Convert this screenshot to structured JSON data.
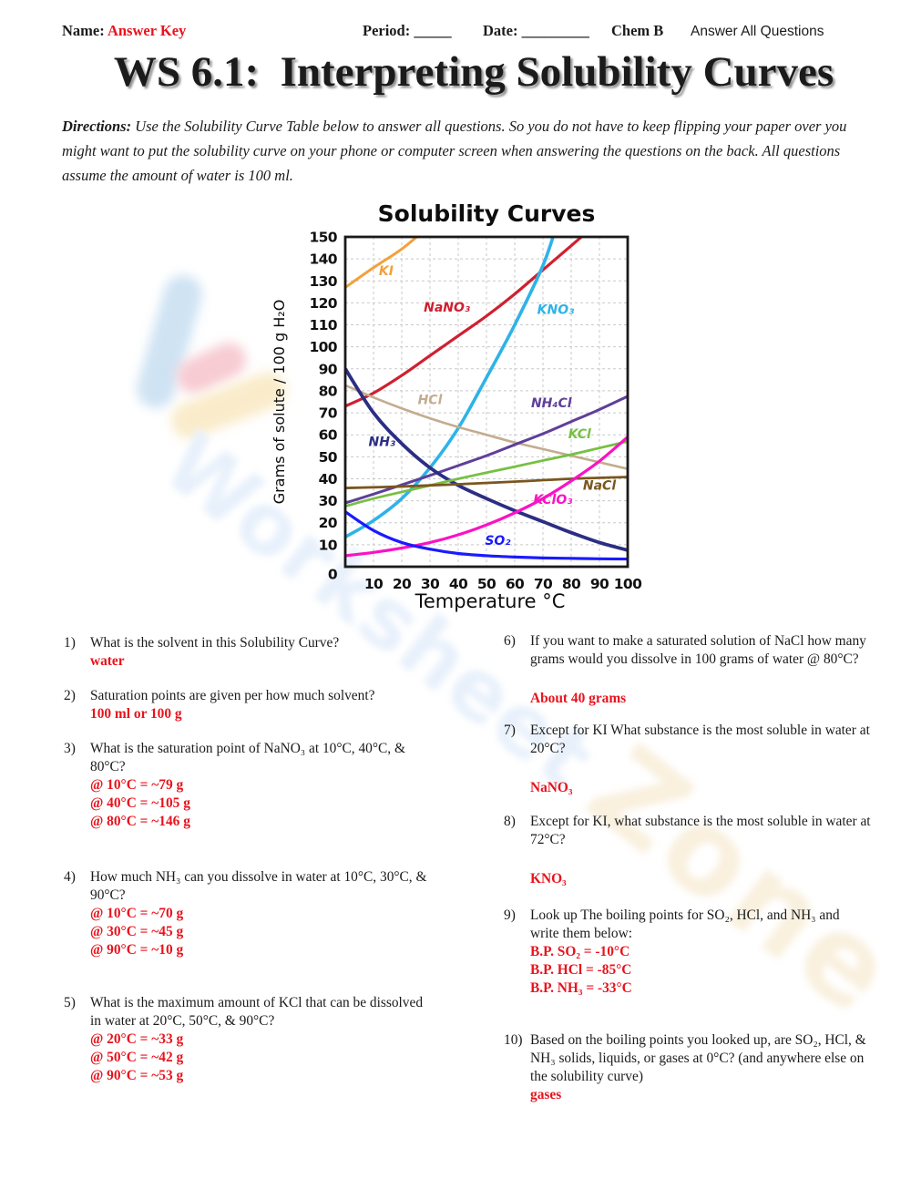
{
  "header": {
    "name_label": "Name: ",
    "name_value": "Answer Key",
    "period_label": "Period: _____",
    "date_label": "Date: _________",
    "chem_label": "Chem B",
    "note": "Answer All Questions"
  },
  "title": "WS 6.1:  Interpreting Solubility Curves",
  "directions_label": "Directions:",
  "directions_text": "  Use the Solubility Curve Table below to answer all questions.  So you do not have to keep flipping your paper over you might want to put the solubility curve on your phone or computer screen when answering the questions on the back.  All questions assume the amount of water is 100 ml.",
  "watermark": {
    "text_primary": "Worksheet",
    "text_secondary": "Zone",
    "blue": "#e7f0fb",
    "tan": "#f9f0de"
  },
  "chart_data": {
    "type": "line",
    "title": "Solubility Curves",
    "xlabel": "Temperature °C",
    "ylabel": "Grams of solute / 100 g H₂O",
    "xlim": [
      0,
      100
    ],
    "ylim": [
      0,
      150
    ],
    "xticks": [
      10,
      20,
      30,
      40,
      50,
      60,
      70,
      80,
      90,
      100
    ],
    "yticks": [
      0,
      10,
      20,
      30,
      40,
      50,
      60,
      70,
      80,
      90,
      100,
      110,
      120,
      130,
      140,
      150
    ],
    "grid": "dashed",
    "series": [
      {
        "name": "KI",
        "color": "#f2a13c",
        "width": 3,
        "points": [
          [
            0,
            127
          ],
          [
            10,
            136
          ],
          [
            20,
            144.5
          ],
          [
            28,
            153
          ]
        ]
      },
      {
        "name": "NaNO3",
        "color": "#cf2030",
        "width": 3.2,
        "points": [
          [
            0,
            73
          ],
          [
            10,
            79
          ],
          [
            20,
            87
          ],
          [
            30,
            96
          ],
          [
            40,
            105
          ],
          [
            50,
            114
          ],
          [
            60,
            124
          ],
          [
            70,
            135
          ],
          [
            80,
            146
          ],
          [
            90,
            157
          ]
        ]
      },
      {
        "name": "KNO3",
        "color": "#2eb3e8",
        "width": 3.6,
        "points": [
          [
            0,
            13.5
          ],
          [
            10,
            21
          ],
          [
            20,
            31
          ],
          [
            30,
            45
          ],
          [
            40,
            63
          ],
          [
            50,
            86
          ],
          [
            60,
            110
          ],
          [
            70,
            137
          ],
          [
            75,
            156
          ]
        ]
      },
      {
        "name": "HCl",
        "color": "#c3ac8e",
        "width": 2.6,
        "points": [
          [
            0,
            82.5
          ],
          [
            10,
            77
          ],
          [
            20,
            72
          ],
          [
            30,
            67.5
          ],
          [
            40,
            63.5
          ],
          [
            50,
            60
          ],
          [
            60,
            56.5
          ],
          [
            70,
            53.5
          ],
          [
            80,
            50.5
          ],
          [
            90,
            47.5
          ],
          [
            100,
            44.5
          ]
        ]
      },
      {
        "name": "NH4Cl",
        "color": "#5f3f99",
        "width": 3,
        "points": [
          [
            0,
            29
          ],
          [
            10,
            33
          ],
          [
            20,
            37.2
          ],
          [
            30,
            41.5
          ],
          [
            40,
            46
          ],
          [
            50,
            50.5
          ],
          [
            60,
            55.5
          ],
          [
            70,
            60.5
          ],
          [
            80,
            66
          ],
          [
            90,
            71.5
          ],
          [
            100,
            77.5
          ]
        ]
      },
      {
        "name": "NH3",
        "color": "#2b2e83",
        "width": 3.8,
        "points": [
          [
            0,
            90
          ],
          [
            10,
            70
          ],
          [
            20,
            56
          ],
          [
            30,
            45
          ],
          [
            40,
            37
          ],
          [
            50,
            31
          ],
          [
            60,
            25.5
          ],
          [
            70,
            20.5
          ],
          [
            80,
            15.5
          ],
          [
            90,
            11
          ],
          [
            100,
            7.5
          ]
        ]
      },
      {
        "name": "KCl",
        "color": "#76c043",
        "width": 2.8,
        "points": [
          [
            0,
            27.5
          ],
          [
            10,
            31
          ],
          [
            20,
            34
          ],
          [
            30,
            37
          ],
          [
            40,
            40
          ],
          [
            50,
            42.8
          ],
          [
            60,
            45.5
          ],
          [
            70,
            48.3
          ],
          [
            80,
            51
          ],
          [
            90,
            54
          ],
          [
            100,
            57
          ]
        ]
      },
      {
        "name": "NaCl",
        "color": "#7a561e",
        "width": 2.8,
        "points": [
          [
            0,
            35.8
          ],
          [
            20,
            36.5
          ],
          [
            40,
            37.5
          ],
          [
            60,
            38.7
          ],
          [
            80,
            40
          ],
          [
            100,
            40.8
          ]
        ]
      },
      {
        "name": "KClO3",
        "color": "#fb12c4",
        "width": 3.2,
        "points": [
          [
            0,
            5
          ],
          [
            10,
            6.5
          ],
          [
            20,
            8.5
          ],
          [
            30,
            11
          ],
          [
            40,
            14.5
          ],
          [
            50,
            19
          ],
          [
            60,
            24.5
          ],
          [
            70,
            31
          ],
          [
            80,
            39
          ],
          [
            90,
            48
          ],
          [
            100,
            59
          ]
        ]
      },
      {
        "name": "SO2",
        "color": "#1a1aff",
        "width": 3.2,
        "points": [
          [
            0,
            25
          ],
          [
            10,
            16.5
          ],
          [
            20,
            11
          ],
          [
            30,
            8
          ],
          [
            40,
            6
          ],
          [
            50,
            5
          ],
          [
            60,
            4.4
          ],
          [
            70,
            4
          ],
          [
            80,
            3.8
          ],
          [
            90,
            3.6
          ],
          [
            100,
            3.5
          ]
        ]
      }
    ],
    "labels": [
      {
        "text": "KI",
        "x": 14.5,
        "y": 132.5,
        "color": "#f2a13c"
      },
      {
        "text": "NaNO₃",
        "x": 36,
        "y": 116,
        "color": "#cf2030"
      },
      {
        "text": "KNO₃",
        "x": 74.5,
        "y": 115,
        "color": "#2eb3e8"
      },
      {
        "text": "HCl",
        "x": 30,
        "y": 74,
        "color": "#c3ac8e"
      },
      {
        "text": "NH₄Cl",
        "x": 73,
        "y": 72.5,
        "color": "#5f3f99"
      },
      {
        "text": "NH₃",
        "x": 13,
        "y": 55,
        "color": "#2b2e83"
      },
      {
        "text": "KCl",
        "x": 83,
        "y": 58.5,
        "color": "#76c043"
      },
      {
        "text": "NaCl",
        "x": 90,
        "y": 35,
        "color": "#7a561e"
      },
      {
        "text": "KClO₃",
        "x": 73.5,
        "y": 28.5,
        "color": "#fb12c4"
      },
      {
        "text": "SO₂",
        "x": 54,
        "y": 10,
        "color": "#1a1aff"
      }
    ]
  },
  "questions_left": [
    {
      "num": "1)",
      "text": "What is the solvent in this Solubility Curve?",
      "answer": "water"
    },
    {
      "num": "2)",
      "text": "Saturation points are given per how much solvent?",
      "answer": "100 ml or 100 g"
    },
    {
      "num": "3)",
      "text": "What is the saturation point of NaNO₃ at 10°C, 40°C, &\n80°C?",
      "answer": "@ 10°C = ~79 g\n@ 40°C = ~105 g\n@ 80°C = ~146 g"
    },
    {
      "num": "4)",
      "text": "How much NH₃ can you dissolve in water at 10°C, 30°C, &\n90°C?",
      "answer": "@ 10°C = ~70 g\n@ 30°C = ~45 g\n@ 90°C = ~10 g"
    },
    {
      "num": "5)",
      "text": "What is the maximum amount of KCl that can be dissolved\nin water at 20°C, 50°C, & 90°C?",
      "answer": "@ 20°C =  ~33 g\n@ 50°C = ~42 g\n@ 90°C = ~53 g"
    }
  ],
  "questions_right": [
    {
      "num": "6)",
      "text": "If you want to make a saturated solution of NaCl how many\ngrams would you dissolve in 100 grams of water @ 80°C?",
      "answer": "About 40 grams"
    },
    {
      "num": "7)",
      "text": "Except for KI What substance is the most soluble in water at\n20°C?",
      "answer": "NaNO₃"
    },
    {
      "num": "8)",
      "text": "Except for KI, what substance is the most soluble in water at\n72°C?",
      "answer": "KNO₃"
    },
    {
      "num": "9)",
      "text": "Look up The boiling points for SO₂, HCl, and NH₃ and\nwrite them below:",
      "answer": "B.P. SO₂ =  -10°C\nB.P. HCl = -85°C\nB.P. NH₃ = -33°C"
    },
    {
      "num": "10)",
      "text": "Based on the boiling points you looked up, are SO₂, HCl, &\nNH₃ solids, liquids, or gases at 0°C? (and anywhere else on\nthe solubility curve)",
      "answer": "gases"
    }
  ]
}
